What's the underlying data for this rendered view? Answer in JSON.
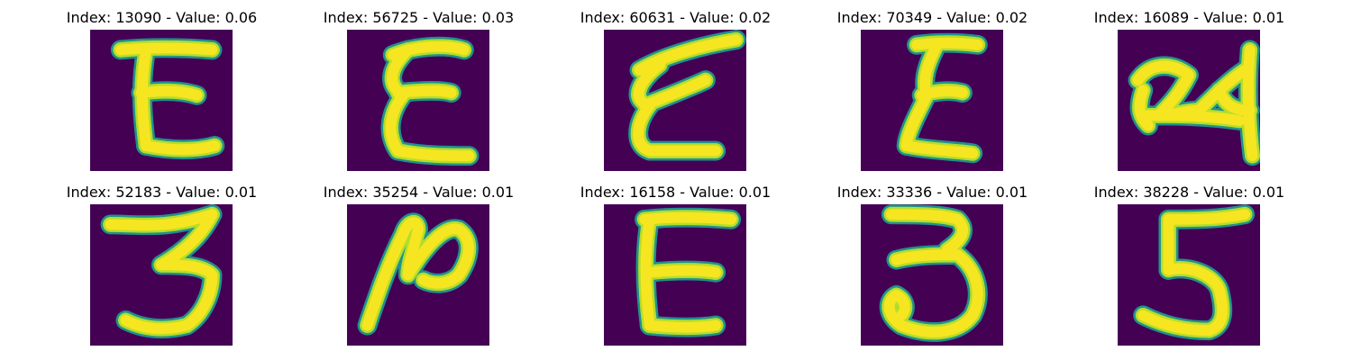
{
  "colors": {
    "background": "#440154",
    "stroke_core": "#f6e621",
    "stroke_mid": "#b5de2b",
    "stroke_edge": "#21918c"
  },
  "panels": [
    {
      "title": "Index: 13090 - Value: 0.06",
      "glyph": "E"
    },
    {
      "title": "Index: 56725 - Value: 0.03",
      "glyph": "E"
    },
    {
      "title": "Index: 60631 - Value: 0.02",
      "glyph": "E"
    },
    {
      "title": "Index: 70349 - Value: 0.02",
      "glyph": "E"
    },
    {
      "title": "Index: 16089 - Value: 0.01",
      "glyph": "24"
    },
    {
      "title": "Index: 52183 - Value: 0.01",
      "glyph": "3"
    },
    {
      "title": "Index: 35254 - Value: 0.01",
      "glyph": "2"
    },
    {
      "title": "Index: 16158 - Value: 0.01",
      "glyph": "E"
    },
    {
      "title": "Index: 33336 - Value: 0.01",
      "glyph": "3"
    },
    {
      "title": "Index: 38228 - Value: 0.01",
      "glyph": "5"
    }
  ]
}
